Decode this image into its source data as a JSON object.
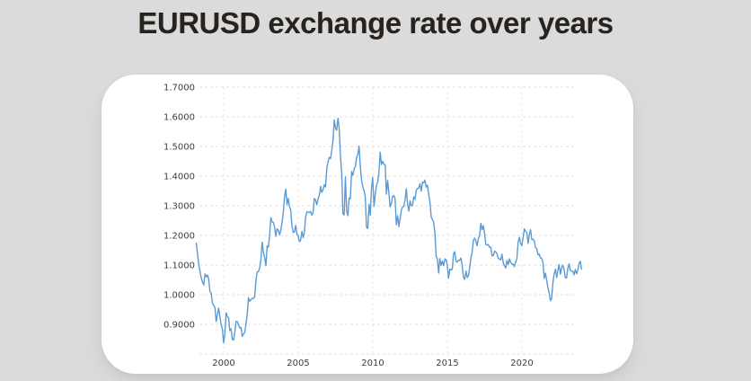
{
  "title": "EURUSD exchange rate over years",
  "colors": {
    "page_background": "#dbdbdb",
    "card_background": "#ffffff",
    "title_text": "#29231e",
    "line": "#5b9bd5",
    "h_gridline": "#dfdfdf",
    "v_gridline": "#e3e3e3",
    "tick_text": "#3c3c3c"
  },
  "chart_data": {
    "type": "line",
    "title": "EURUSD exchange rate over years",
    "series_name": "EURUSD",
    "xlabel": "",
    "ylabel": "",
    "grid": "dashed",
    "legend": "none",
    "ylim": [
      0.8,
      1.7
    ],
    "y_tick_labels": [
      "1.7000",
      "1.6000",
      "1.5000",
      "1.4000",
      "1.3000",
      "1.2000",
      "1.1000",
      "1.0000",
      "0.9000"
    ],
    "y_gridline_values": [
      1.7,
      1.6,
      1.5,
      1.4,
      1.3,
      1.2,
      1.1,
      1.0,
      0.9,
      0.8
    ],
    "x_tick_labels": [
      "2000",
      "2005",
      "2010",
      "2015",
      "2020"
    ],
    "x_tick_years": [
      2000,
      2005,
      2010,
      2015,
      2020
    ],
    "x_start_year": 1999.0,
    "x_step_years": 0.08333,
    "values": [
      1.174,
      1.138,
      1.101,
      1.078,
      1.057,
      1.043,
      1.033,
      1.07,
      1.06,
      1.066,
      1.053,
      1.011,
      1.005,
      0.971,
      0.964,
      0.957,
      0.91,
      0.933,
      0.955,
      0.926,
      0.898,
      0.884,
      0.838,
      0.866,
      0.939,
      0.926,
      0.922,
      0.879,
      0.885,
      0.85,
      0.847,
      0.875,
      0.91,
      0.91,
      0.898,
      0.888,
      0.89,
      0.859,
      0.868,
      0.872,
      0.901,
      0.934,
      0.99,
      0.978,
      0.983,
      0.988,
      0.988,
      0.992,
      1.049,
      1.077,
      1.078,
      1.09,
      1.118,
      1.177,
      1.143,
      1.125,
      1.098,
      1.165,
      1.16,
      1.199,
      1.26,
      1.245,
      1.244,
      1.229,
      1.197,
      1.222,
      1.218,
      1.202,
      1.218,
      1.242,
      1.274,
      1.33,
      1.356,
      1.304,
      1.325,
      1.297,
      1.286,
      1.233,
      1.21,
      1.212,
      1.234,
      1.203,
      1.199,
      1.179,
      1.184,
      1.214,
      1.192,
      1.211,
      1.262,
      1.28,
      1.278,
      1.277,
      1.281,
      1.268,
      1.277,
      1.325,
      1.32,
      1.303,
      1.323,
      1.336,
      1.365,
      1.345,
      1.354,
      1.371,
      1.363,
      1.427,
      1.448,
      1.463,
      1.459,
      1.487,
      1.519,
      1.59,
      1.562,
      1.555,
      1.595,
      1.56,
      1.467,
      1.41,
      1.273,
      1.269,
      1.397,
      1.281,
      1.267,
      1.326,
      1.324,
      1.415,
      1.403,
      1.425,
      1.433,
      1.464,
      1.472,
      1.501,
      1.433,
      1.386,
      1.363,
      1.351,
      1.33,
      1.227,
      1.224,
      1.305,
      1.268,
      1.363,
      1.395,
      1.298,
      1.338,
      1.369,
      1.381,
      1.416,
      1.481,
      1.439,
      1.45,
      1.44,
      1.438,
      1.339,
      1.385,
      1.344,
      1.296,
      1.308,
      1.333,
      1.334,
      1.324,
      1.236,
      1.266,
      1.23,
      1.257,
      1.286,
      1.296,
      1.298,
      1.319,
      1.358,
      1.306,
      1.282,
      1.317,
      1.3,
      1.301,
      1.33,
      1.322,
      1.353,
      1.358,
      1.359,
      1.374,
      1.349,
      1.38,
      1.377,
      1.387,
      1.363,
      1.369,
      1.339,
      1.313,
      1.263,
      1.253,
      1.245,
      1.21,
      1.129,
      1.12,
      1.073,
      1.122,
      1.099,
      1.114,
      1.098,
      1.121,
      1.118,
      1.1,
      1.056,
      1.086,
      1.083,
      1.087,
      1.138,
      1.145,
      1.113,
      1.11,
      1.117,
      1.116,
      1.124,
      1.098,
      1.059,
      1.052,
      1.08,
      1.058,
      1.065,
      1.09,
      1.124,
      1.143,
      1.184,
      1.191,
      1.181,
      1.165,
      1.19,
      1.2,
      1.241,
      1.219,
      1.232,
      1.208,
      1.169,
      1.168,
      1.169,
      1.16,
      1.16,
      1.131,
      1.132,
      1.147,
      1.145,
      1.137,
      1.122,
      1.121,
      1.117,
      1.137,
      1.108,
      1.098,
      1.09,
      1.115,
      1.102,
      1.121,
      1.109,
      1.103,
      1.103,
      1.095,
      1.11,
      1.123,
      1.178,
      1.194,
      1.172,
      1.165,
      1.193,
      1.222,
      1.214,
      1.209,
      1.173,
      1.202,
      1.219,
      1.186,
      1.187,
      1.181,
      1.158,
      1.156,
      1.134,
      1.137,
      1.124,
      1.122,
      1.107,
      1.055,
      1.073,
      1.048,
      1.022,
      1.005,
      0.98,
      0.988,
      1.041,
      1.07,
      1.086,
      1.058,
      1.084,
      1.102,
      1.069,
      1.091,
      1.1,
      1.084,
      1.057,
      1.057,
      1.089,
      1.104,
      1.082,
      1.08,
      1.079,
      1.067,
      1.085,
      1.071,
      1.083,
      1.105,
      1.113,
      1.086
    ]
  }
}
